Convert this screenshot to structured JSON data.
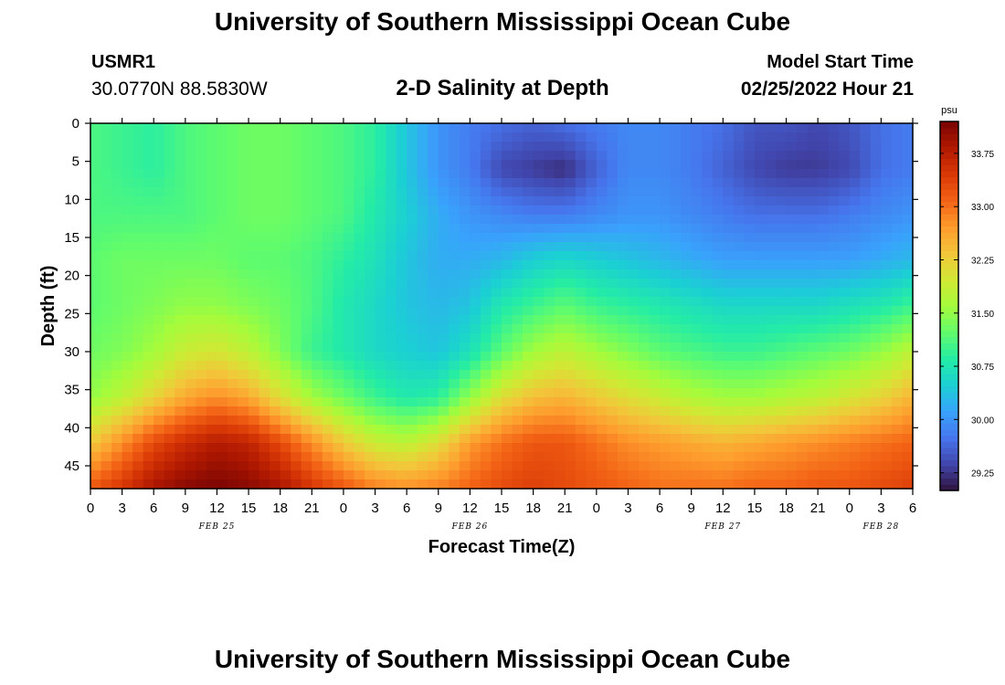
{
  "header": {
    "title": "University of Southern Mississippi Ocean Cube",
    "station_id": "USMR1",
    "coordinates": "30.0770N  88.5830W",
    "subtitle": "2-D Salinity at Depth",
    "model_start_label": "Model Start Time",
    "model_start_value": "02/25/2022 Hour 21"
  },
  "footer": {
    "title": "University of Southern Mississippi Ocean Cube"
  },
  "colors": {
    "colormap": [
      "#30123b",
      "#4145ab",
      "#4675ed",
      "#39a2fc",
      "#1bcfd4",
      "#24eca6",
      "#61fc6c",
      "#a4fc3b",
      "#d1e834",
      "#f3c63a",
      "#fe9b2d",
      "#f36315",
      "#d93806",
      "#b11901",
      "#7a0402"
    ]
  },
  "chart_data": {
    "type": "heatmap",
    "title": "2-D Salinity at Depth",
    "xlabel": "Forecast Time(Z)",
    "ylabel": "Depth (ft)",
    "x_tick_labels": [
      "0",
      "3",
      "6",
      "9",
      "12",
      "15",
      "18",
      "21",
      "0",
      "3",
      "6",
      "9",
      "12",
      "15",
      "18",
      "21",
      "0",
      "3",
      "6",
      "9",
      "12",
      "15",
      "18",
      "21",
      "0",
      "3",
      "6"
    ],
    "date_labels": [
      {
        "label": "FEB 25",
        "hours": 12
      },
      {
        "label": "FEB 26",
        "hours": 36
      },
      {
        "label": "FEB 27",
        "hours": 60
      },
      {
        "label": "FEB 28",
        "hours": 75
      }
    ],
    "x_hours": [
      0,
      3,
      6,
      9,
      12,
      15,
      18,
      21,
      24,
      27,
      30,
      33,
      36,
      39,
      42,
      45,
      48,
      51,
      54,
      57,
      60,
      63,
      66,
      69,
      72,
      75,
      78
    ],
    "xlim": [
      0,
      78
    ],
    "ylim": [
      0,
      48
    ],
    "y_ticks": [
      0,
      5,
      10,
      15,
      20,
      25,
      30,
      35,
      40,
      45
    ],
    "depth_ft": [
      0,
      6,
      12,
      18,
      24,
      30,
      36,
      42,
      48
    ],
    "values": [
      [
        31.1,
        31.0,
        30.9,
        31.1,
        31.2,
        31.3,
        31.3,
        31.2,
        31.1,
        30.9,
        30.4,
        30.0,
        29.8,
        29.7,
        29.6,
        29.7,
        29.8,
        29.9,
        29.9,
        29.8,
        29.7,
        29.5,
        29.5,
        29.4,
        29.5,
        29.7,
        29.8
      ],
      [
        31.1,
        31.0,
        30.9,
        31.1,
        31.2,
        31.3,
        31.3,
        31.2,
        31.1,
        30.9,
        30.4,
        30.0,
        29.8,
        29.4,
        29.3,
        29.2,
        29.6,
        29.9,
        29.9,
        29.8,
        29.6,
        29.4,
        29.3,
        29.3,
        29.4,
        29.7,
        29.8
      ],
      [
        31.1,
        31.1,
        31.1,
        31.1,
        31.2,
        31.3,
        31.3,
        31.2,
        31.1,
        30.8,
        30.5,
        30.2,
        30.0,
        29.9,
        29.8,
        29.8,
        29.9,
        30.0,
        30.0,
        29.9,
        29.8,
        29.7,
        29.7,
        29.7,
        29.8,
        29.9,
        30.0
      ],
      [
        31.2,
        31.3,
        31.3,
        31.3,
        31.3,
        31.2,
        31.2,
        31.1,
        30.9,
        30.7,
        30.4,
        30.2,
        30.2,
        30.3,
        30.5,
        30.6,
        30.5,
        30.4,
        30.3,
        30.2,
        30.1,
        30.1,
        30.1,
        30.1,
        30.1,
        30.2,
        30.3
      ],
      [
        31.2,
        31.3,
        31.4,
        31.5,
        31.5,
        31.4,
        31.3,
        31.1,
        30.8,
        30.6,
        30.4,
        30.3,
        30.4,
        30.8,
        31.0,
        31.2,
        31.0,
        30.9,
        30.8,
        30.7,
        30.6,
        30.6,
        30.6,
        30.6,
        30.7,
        30.8,
        31.0
      ],
      [
        31.3,
        31.4,
        31.6,
        31.9,
        32.0,
        31.8,
        31.4,
        31.0,
        30.8,
        30.6,
        30.5,
        30.4,
        30.7,
        31.2,
        31.6,
        31.8,
        31.6,
        31.4,
        31.2,
        31.1,
        31.0,
        31.0,
        31.1,
        31.2,
        31.3,
        31.5,
        31.8
      ],
      [
        31.5,
        31.8,
        32.2,
        32.6,
        32.8,
        32.6,
        32.1,
        31.6,
        31.3,
        31.0,
        30.8,
        30.9,
        31.5,
        32.1,
        32.4,
        32.5,
        32.3,
        32.1,
        31.9,
        31.7,
        31.6,
        31.6,
        31.7,
        31.8,
        32.0,
        32.2,
        32.5
      ],
      [
        32.3,
        32.8,
        33.3,
        33.6,
        33.8,
        33.7,
        33.3,
        32.8,
        32.3,
        31.9,
        31.8,
        32.1,
        32.7,
        33.0,
        33.2,
        33.2,
        33.0,
        32.8,
        32.7,
        32.6,
        32.5,
        32.6,
        32.7,
        32.8,
        32.9,
        33.0,
        33.1
      ],
      [
        33.2,
        33.5,
        33.9,
        34.1,
        34.2,
        34.1,
        33.9,
        33.5,
        33.2,
        32.9,
        32.8,
        32.9,
        33.1,
        33.3,
        33.4,
        33.3,
        33.2,
        33.1,
        33.0,
        33.0,
        33.0,
        33.1,
        33.1,
        33.2,
        33.2,
        33.3,
        33.4
      ]
    ],
    "colorbar": {
      "unit": "psu",
      "range": [
        29.0,
        34.2
      ],
      "ticks": [
        29.25,
        30.0,
        30.75,
        31.5,
        32.25,
        33.0,
        33.75
      ],
      "tick_labels": [
        "29.25",
        "30.00",
        "30.75",
        "31.50",
        "32.25",
        "33.00",
        "33.75"
      ]
    },
    "grid": false
  }
}
